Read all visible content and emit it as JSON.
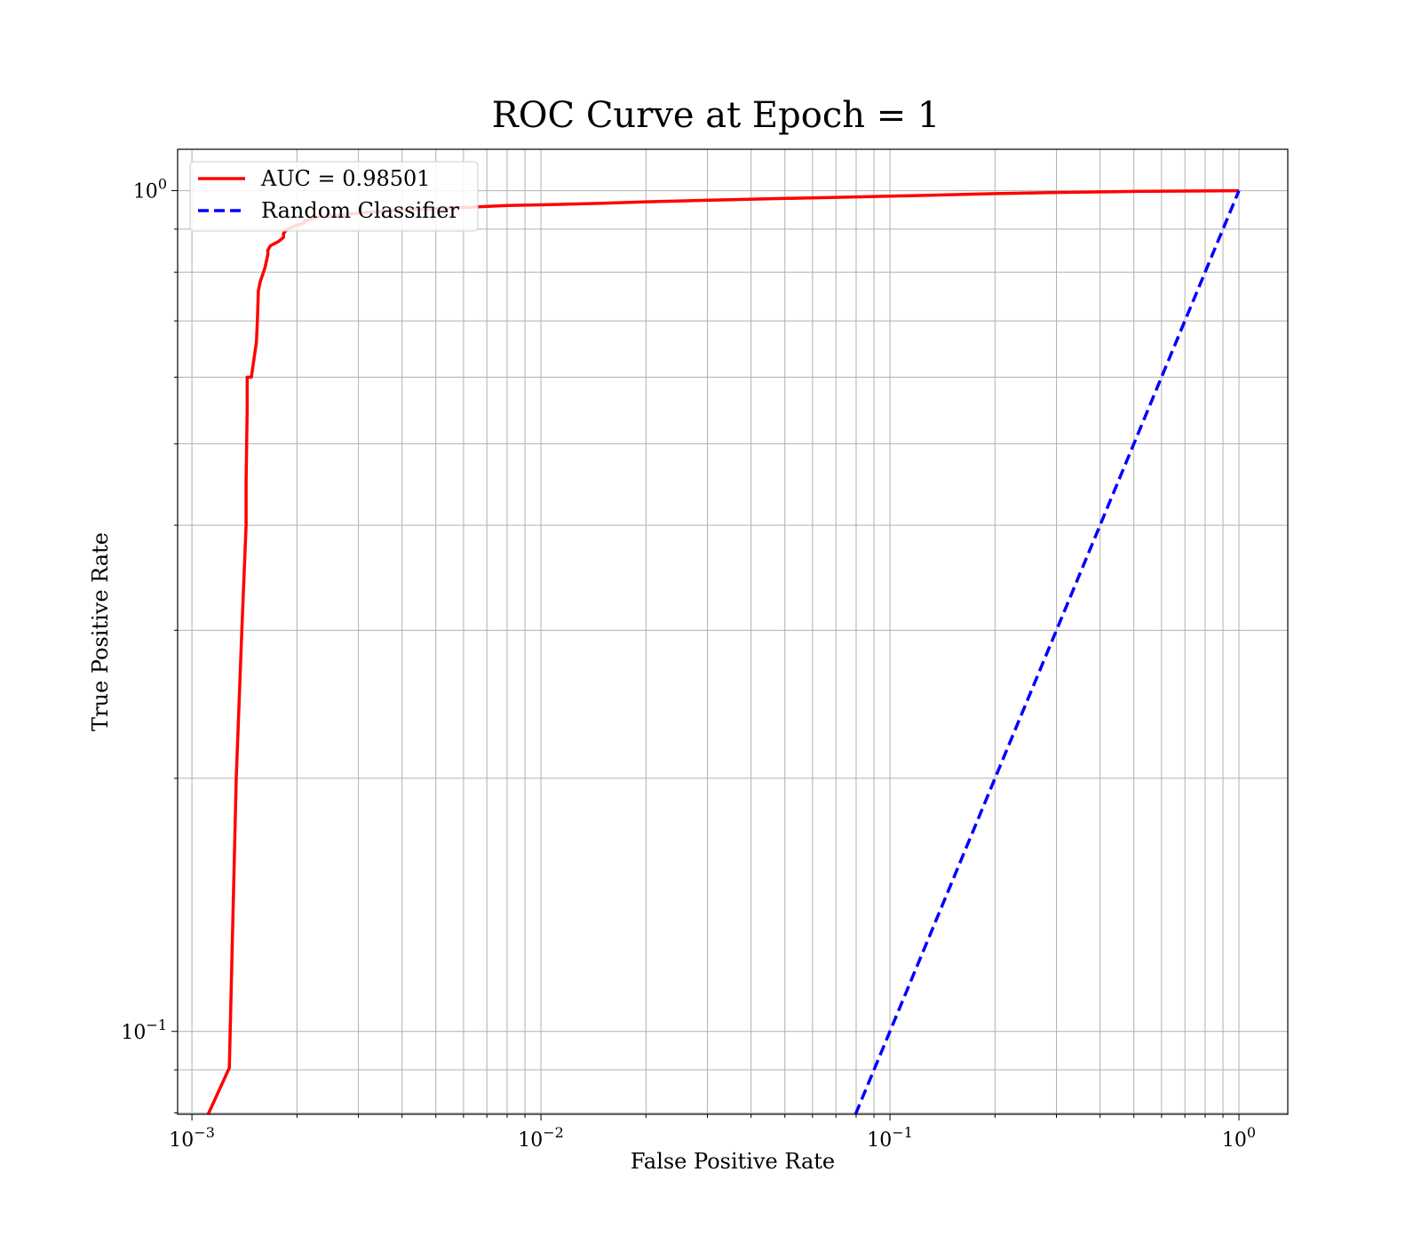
{
  "chart_data": {
    "type": "line",
    "title": "ROC Curve at Epoch = 1",
    "xlabel": "False Positive Rate",
    "ylabel": "True Positive Rate",
    "xscale": "log",
    "yscale": "log",
    "xlim": [
      0.00091,
      1.38
    ],
    "ylim": [
      0.0797,
      1.12
    ],
    "grid": "major-and-minor",
    "legend_position": "top-left",
    "x_ticks": [
      {
        "value": 0.001,
        "base": "10",
        "exp": "−3"
      },
      {
        "value": 0.01,
        "base": "10",
        "exp": "−2"
      },
      {
        "value": 0.1,
        "base": "10",
        "exp": "−1"
      },
      {
        "value": 1,
        "base": "10",
        "exp": "0"
      }
    ],
    "y_ticks": [
      {
        "value": 0.1,
        "base": "10",
        "exp": "−1"
      },
      {
        "value": 1,
        "base": "10",
        "exp": "0"
      }
    ],
    "series": [
      {
        "name": "AUC = 0.98501",
        "color": "#ff0000",
        "style": "solid",
        "x": [
          0.00111,
          0.00128,
          0.00134,
          0.00139,
          0.00143,
          0.00143,
          0.00144,
          0.00144,
          0.00148,
          0.00153,
          0.00154,
          0.00155,
          0.00157,
          0.00157,
          0.00162,
          0.00165,
          0.00165,
          0.00168,
          0.00177,
          0.00183,
          0.00183,
          0.00188,
          0.002,
          0.0021,
          0.0021,
          0.0023,
          0.0026,
          0.003,
          0.0035,
          0.0045,
          0.006,
          0.008,
          0.01,
          0.015,
          0.02,
          0.03,
          0.05,
          0.08,
          0.1,
          0.15,
          0.2,
          0.3,
          0.5,
          0.7,
          1.0
        ],
        "y": [
          0.0795,
          0.0905,
          0.2,
          0.3,
          0.4,
          0.45,
          0.55,
          0.6,
          0.6,
          0.66,
          0.7,
          0.76,
          0.78,
          0.78,
          0.81,
          0.84,
          0.85,
          0.86,
          0.87,
          0.88,
          0.89,
          0.9,
          0.91,
          0.915,
          0.92,
          0.93,
          0.935,
          0.94,
          0.945,
          0.95,
          0.955,
          0.96,
          0.962,
          0.966,
          0.97,
          0.974,
          0.979,
          0.983,
          0.985,
          0.989,
          0.992,
          0.995,
          0.998,
          0.999,
          1.0
        ]
      },
      {
        "name": "Random Classifier",
        "color": "#0000ff",
        "style": "dashed",
        "x": [
          0.0797,
          1.0
        ],
        "y": [
          0.0797,
          1.0
        ]
      }
    ]
  }
}
